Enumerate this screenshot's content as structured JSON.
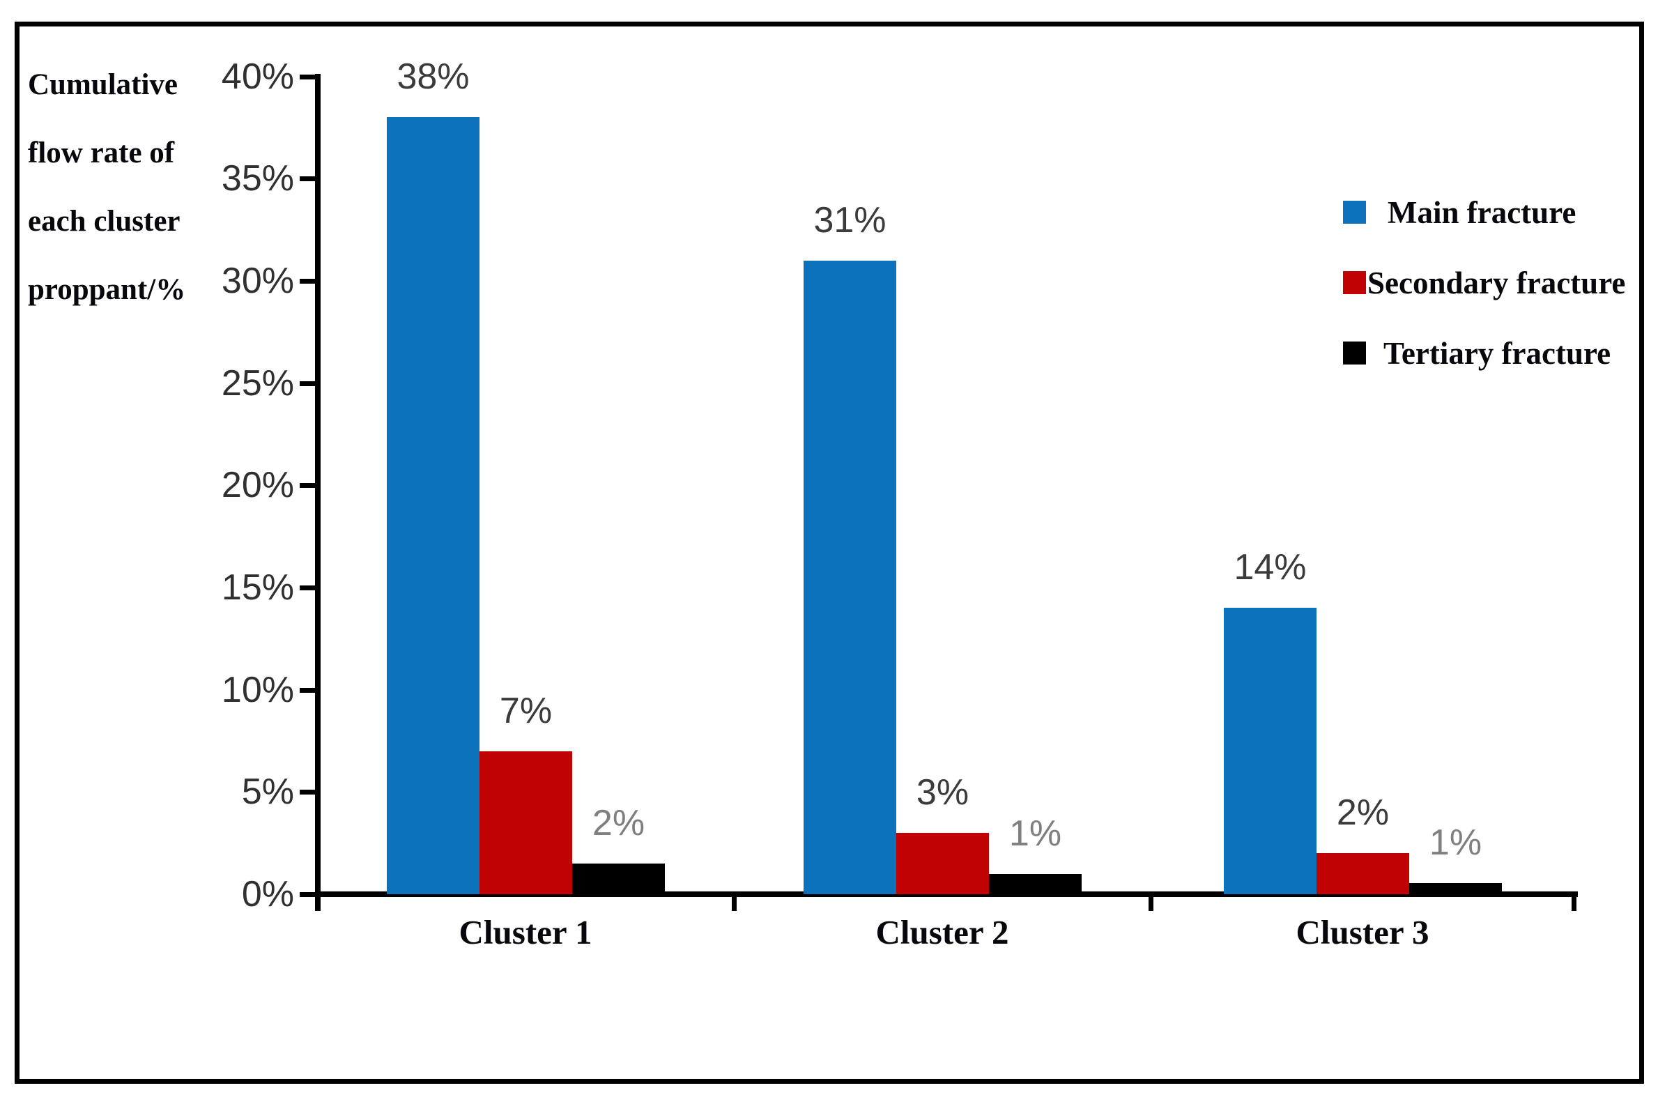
{
  "chart_data": {
    "type": "bar",
    "title": "",
    "ylabel": "Cumulative flow rate of each cluster proppant/%",
    "ylabel_lines": [
      "Cumulative",
      "flow rate of",
      "each cluster",
      "proppant/%"
    ],
    "categories": [
      "Cluster 1",
      "Cluster 2",
      "Cluster 3"
    ],
    "series": [
      {
        "name": "Main fracture",
        "color": "#0D72BC",
        "values": [
          38,
          31,
          14
        ],
        "data_labels": [
          "38%",
          "31%",
          "14%"
        ],
        "drawn_values": [
          38,
          31,
          14
        ],
        "label_color": "#3B3B3B"
      },
      {
        "name": "Secondary fracture",
        "color": "#C00202",
        "values": [
          7,
          3,
          2
        ],
        "data_labels": [
          "7%",
          "3%",
          "2%"
        ],
        "drawn_values": [
          7,
          3,
          2
        ],
        "label_color": "#3B3B3B"
      },
      {
        "name": "Tertiary fracture",
        "color": "#000000",
        "values": [
          2,
          1,
          1
        ],
        "data_labels": [
          "2%",
          "1%",
          "1%"
        ],
        "drawn_values": [
          1.5,
          1.0,
          0.55
        ],
        "label_color": "#7F7F7F"
      }
    ],
    "y_axis": {
      "min": 0,
      "max": 40,
      "step": 5,
      "tick_suffix": "%",
      "tick_labels": [
        "0%",
        "5%",
        "10%",
        "15%",
        "20%",
        "25%",
        "30%",
        "35%",
        "40%"
      ]
    },
    "x_axis": {
      "tick_labels": [
        "Cluster 1",
        "Cluster 2",
        "Cluster 3"
      ]
    },
    "legend": {
      "position": "right",
      "entries": [
        "Main fracture",
        "Secondary fracture",
        "Tertiary fracture"
      ]
    },
    "grid": false,
    "ylim": [
      0,
      40
    ],
    "colors": {
      "axis": "#000000",
      "tick_label": "#303030",
      "serif_text": "#07070d",
      "background": "#FFFFFF"
    }
  }
}
